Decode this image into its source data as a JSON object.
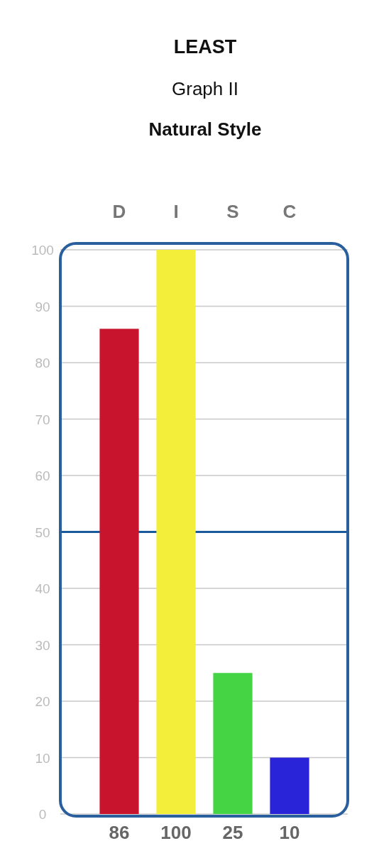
{
  "chart_data": {
    "type": "bar",
    "title": "LEAST",
    "subtitle": "Graph II",
    "xlabel": "Natural Style",
    "categories": [
      "D",
      "I",
      "S",
      "C"
    ],
    "values": [
      86,
      100,
      25,
      10
    ],
    "colors": [
      "#c8142c",
      "#f2ee3a",
      "#44d444",
      "#2a24d8"
    ],
    "ylim": [
      0,
      100
    ],
    "yticks": [
      0,
      10,
      20,
      30,
      40,
      50,
      60,
      70,
      80,
      90,
      100
    ],
    "grid": "y",
    "data_labels": true,
    "ref_lines": [
      {
        "axis": "y",
        "value": 50,
        "label": null,
        "color": "#1a5a9c"
      }
    ]
  }
}
